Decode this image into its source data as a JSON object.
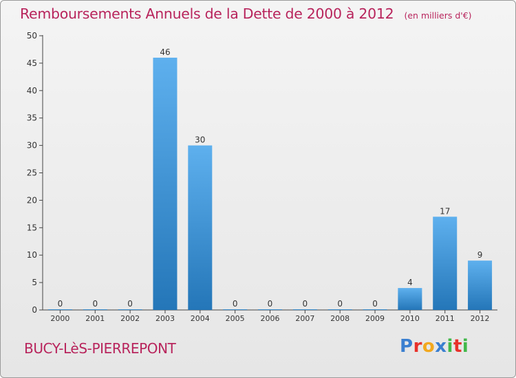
{
  "chart_title": "Remboursements Annuels de la Dette de 2000 à 2012",
  "unit_note": "(en milliers d'€)",
  "commune": "BUCY-LèS-PIERREPONT",
  "logo": {
    "letters": [
      "P",
      "r",
      "o",
      "x",
      "i",
      "t",
      "i"
    ],
    "colors": [
      "#3a7fd0",
      "#e8312a",
      "#f2a81d",
      "#3a7fd0",
      "#42b84a",
      "#e8312a",
      "#42b84a"
    ]
  },
  "chart_data": {
    "type": "bar",
    "categories": [
      "2000",
      "2001",
      "2002",
      "2003",
      "2004",
      "2005",
      "2006",
      "2007",
      "2008",
      "2009",
      "2010",
      "2011",
      "2012"
    ],
    "values": [
      0,
      0,
      0,
      46,
      30,
      0,
      0,
      0,
      0,
      0,
      4,
      17,
      9
    ],
    "ylim": [
      0,
      50
    ],
    "yticks": [
      0,
      5,
      10,
      15,
      20,
      25,
      30,
      35,
      40,
      45,
      50
    ],
    "grid": false,
    "bar_color_top": "#5eb0ee",
    "bar_color_bottom": "#2476b8"
  }
}
